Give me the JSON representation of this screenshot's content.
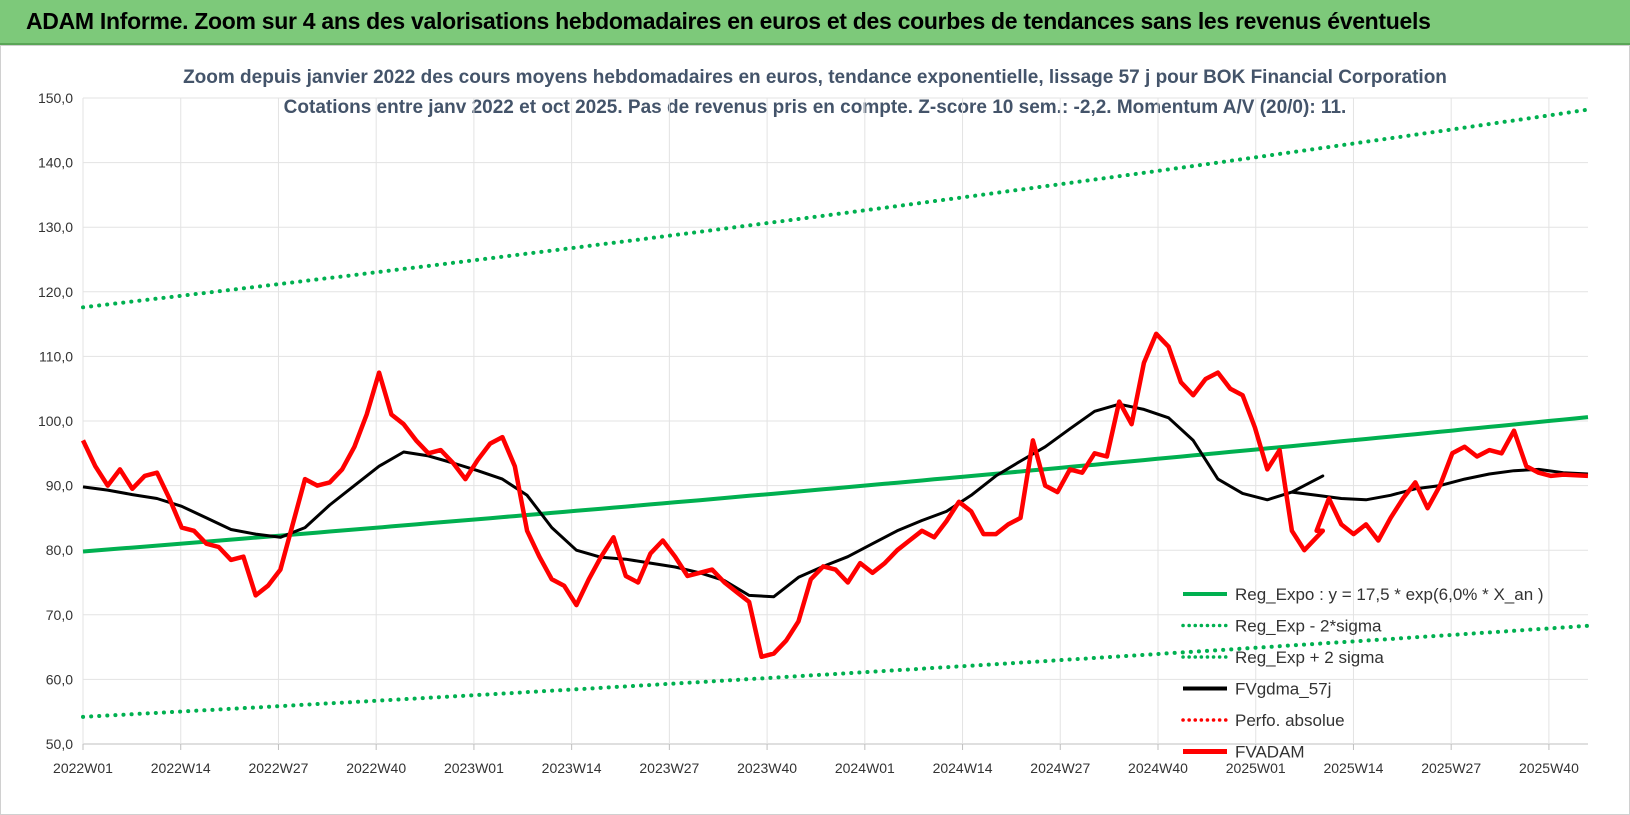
{
  "banner": {
    "title": "ADAM Informe. Zoom sur 4 ans des valorisations hebdomadaires en euros et des courbes de tendances sans les revenus éventuels"
  },
  "chart_data": {
    "type": "line",
    "title": "Zoom depuis janvier 2022 des cours moyens hebdomadaires en euros, tendance exponentielle, lissage 57 j pour BOK Financial Corporation",
    "subtitle": "Cotations entre janv 2022 et oct 2025. Pas de revenus pris en compte. Z-score 10 sem.: -2,2. Momentum A/V (20/0): 11.",
    "ylim": [
      50,
      150
    ],
    "y_ticks": [
      "50,0",
      "60,0",
      "70,0",
      "80,0",
      "90,0",
      "100,0",
      "110,0",
      "120,0",
      "130,0",
      "140,0",
      "150,0"
    ],
    "x_ticks": [
      "2022W01",
      "2022W14",
      "2022W27",
      "2022W40",
      "2023W01",
      "2023W14",
      "2023W27",
      "2023W40",
      "2024W01",
      "2024W14",
      "2024W27",
      "2024W40",
      "2025W01",
      "2025W14",
      "2025W27",
      "2025W40"
    ],
    "grid": true,
    "legend_position": "right",
    "x_count": 202,
    "series": [
      {
        "name": "Reg_Expo : y = 17,5 * exp(6,0% * X_an )",
        "color": "#00b050",
        "style": "solid",
        "start": 79.8,
        "end": 100.6
      },
      {
        "name": "Reg_Exp - 2*sigma",
        "color": "#00b050",
        "style": "dotted",
        "start": 54.2,
        "end": 68.3
      },
      {
        "name": "Reg_Exp + 2 sigma",
        "color": "#00b050",
        "style": "dotted",
        "start": 117.6,
        "end": 148.2
      },
      {
        "name": "FVgdma_57j",
        "color": "#000000",
        "style": "solid",
        "x": [
          0,
          4,
          8,
          12,
          16,
          20,
          24,
          28,
          32,
          36,
          40,
          44,
          48,
          52,
          56,
          60,
          64,
          68,
          72,
          76,
          80,
          84,
          88,
          92,
          96,
          100,
          104,
          108,
          112,
          116,
          120,
          124,
          128,
          132,
          136,
          140,
          144,
          148,
          152,
          156,
          160,
          164,
          168,
          172,
          176,
          180,
          184,
          188,
          192,
          196,
          201
        ],
        "values": [
          89.8,
          89.3,
          88.6,
          88.0,
          86.8,
          85.0,
          83.2,
          82.5,
          82.0,
          83.5,
          87.0,
          90.0,
          93.0,
          95.2,
          94.6,
          93.5,
          92.3,
          91.0,
          88.5,
          83.5,
          80.0,
          78.9,
          78.6,
          78.0,
          77.4,
          76.5,
          75.3,
          73.0,
          72.8,
          75.8,
          77.5,
          79.0,
          81.0,
          83.0,
          84.6,
          86.0,
          88.5,
          91.5,
          93.8,
          96.0,
          98.8,
          101.5,
          102.6,
          101.8,
          100.5,
          97.0,
          91.0,
          88.8,
          87.8,
          89.0,
          91.5
        ]
      },
      {
        "name": "Perfo. absolue",
        "color": "#ff0000",
        "style": "dotted",
        "x": [],
        "values": []
      },
      {
        "name": "FVADAM",
        "color": "#ff0000",
        "style": "solid",
        "x": [
          0,
          2,
          4,
          6,
          8,
          10,
          12,
          14,
          16,
          18,
          20,
          22,
          24,
          26,
          28,
          30,
          32,
          34,
          36,
          38,
          40,
          42,
          44,
          46,
          48,
          50,
          52,
          54,
          56,
          58,
          60,
          62,
          64,
          66,
          68,
          70,
          72,
          74,
          76,
          78,
          80,
          82,
          84,
          86,
          88,
          90,
          92,
          94,
          96,
          98,
          100,
          102,
          104,
          106,
          108,
          110,
          112,
          114,
          116,
          118,
          120,
          122,
          124,
          126,
          128,
          130,
          132,
          134,
          136,
          138,
          140,
          142,
          144,
          146,
          148,
          150,
          152,
          154,
          156,
          158,
          160,
          162,
          164,
          166,
          168,
          170,
          172,
          174,
          176,
          178,
          180,
          182,
          184,
          186,
          188,
          190,
          192,
          194,
          196,
          198,
          201
        ],
        "values": [
          97.0,
          93.0,
          90.0,
          92.5,
          89.5,
          91.5,
          92.0,
          88.0,
          83.5,
          83.0,
          81.0,
          80.5,
          78.5,
          79.0,
          73.0,
          74.5,
          77.0,
          84.0,
          91.0,
          90.0,
          90.5,
          92.5,
          96.0,
          101.0,
          107.5,
          101.0,
          99.5,
          97.0,
          95.0,
          95.5,
          93.5,
          91.0,
          94.0,
          96.5,
          97.5,
          93.0,
          83.0,
          79.0,
          75.5,
          74.5,
          71.5,
          75.5,
          79.0,
          82.0,
          76.0,
          75.0,
          79.5,
          81.5,
          79.0,
          76.0,
          76.5,
          77.0,
          75.0,
          73.5,
          72.0,
          63.5,
          64.0,
          66.0,
          69.0,
          75.5,
          77.5,
          77.0,
          75.0,
          78.0,
          76.5,
          78.0,
          80.0,
          81.5,
          83.0,
          82.0,
          84.5,
          87.5,
          86.0,
          82.5,
          82.5,
          84.0,
          85.0,
          97.0,
          90.0,
          89.0,
          92.5,
          92.0,
          95.0,
          94.5,
          103.0,
          99.5,
          109.0,
          113.5,
          111.5,
          106.0,
          104.0,
          106.5,
          107.5,
          105.0,
          104.0,
          99.0,
          92.5,
          95.5,
          83.0,
          80.0,
          83.0
        ]
      }
    ],
    "fvadam_tail": {
      "x": [
        200,
        202,
        204,
        206,
        208,
        210,
        212,
        214,
        216,
        218,
        220,
        222,
        224,
        226,
        228,
        230,
        232,
        234,
        236,
        238,
        240,
        242,
        244
      ],
      "values": [
        83.0,
        88.0,
        84.0,
        82.5,
        84.0,
        81.5,
        85.0,
        88.0,
        90.5,
        86.5,
        90.0,
        95.0,
        96.0,
        94.5,
        95.5,
        95.0,
        98.5,
        93.0,
        92.0,
        91.5,
        91.7,
        91.6,
        91.5
      ]
    },
    "fvgdma_tail": {
      "x": [
        196,
        200,
        204,
        208,
        212,
        216,
        220,
        224,
        228,
        232,
        236,
        240,
        244
      ],
      "values": [
        89.0,
        88.5,
        88.0,
        87.8,
        88.5,
        89.5,
        90.0,
        91.0,
        91.8,
        92.3,
        92.5,
        92.0,
        91.8
      ]
    }
  }
}
